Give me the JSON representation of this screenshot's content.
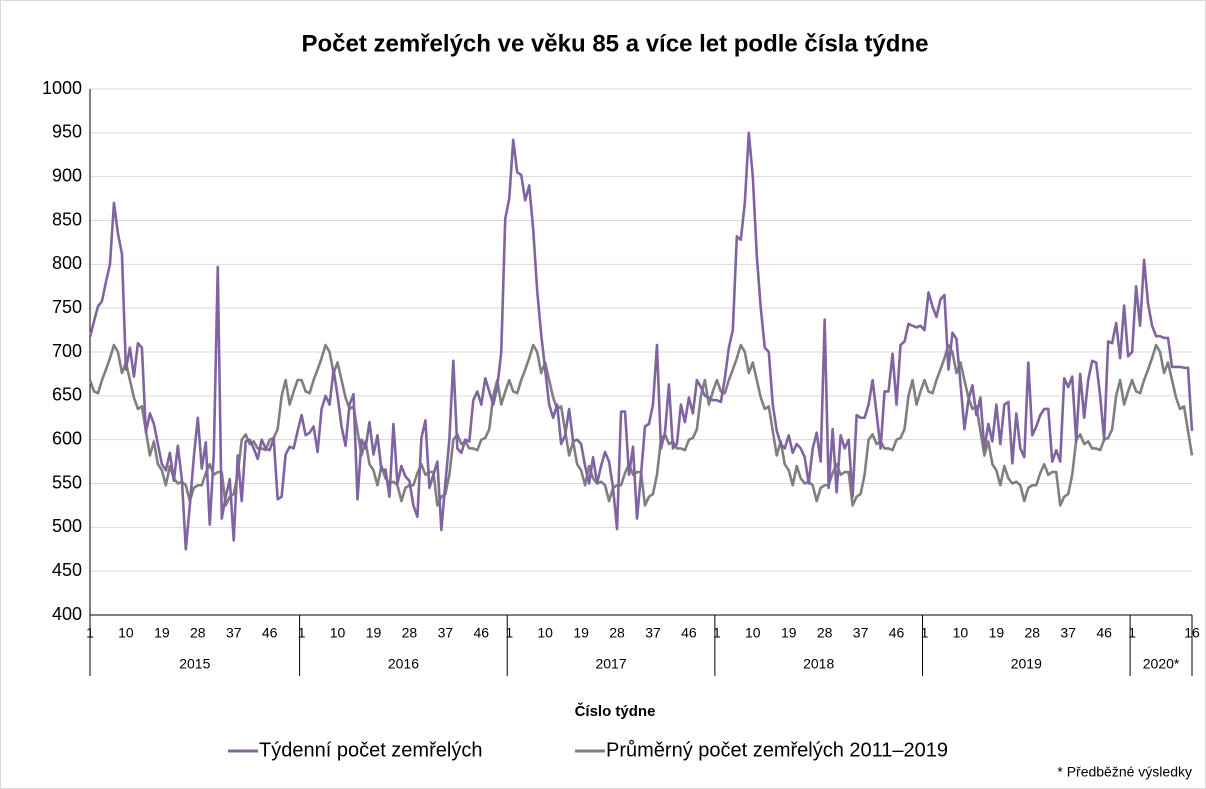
{
  "chart_data": {
    "type": "line",
    "title": "Počet zemřelých ve věku 85 a více let podle čísla týdne",
    "x_label": "Číslo týdne",
    "note": "* Předběžné výsledky",
    "years": [
      "2015",
      "2016",
      "2017",
      "2018",
      "2019",
      "2020*"
    ],
    "categories": [
      "1",
      null,
      null,
      null,
      null,
      null,
      null,
      null,
      null,
      "10",
      null,
      null,
      null,
      null,
      null,
      null,
      null,
      null,
      "19",
      null,
      null,
      null,
      null,
      null,
      null,
      null,
      null,
      "28",
      null,
      null,
      null,
      null,
      null,
      null,
      null,
      null,
      "37",
      null,
      null,
      null,
      null,
      null,
      null,
      null,
      null,
      "46",
      null,
      null,
      null,
      null,
      null,
      null,
      null,
      "1",
      null,
      null,
      null,
      null,
      null,
      null,
      null,
      null,
      "10",
      null,
      null,
      null,
      null,
      null,
      null,
      null,
      null,
      "19",
      null,
      null,
      null,
      null,
      null,
      null,
      null,
      null,
      "28",
      null,
      null,
      null,
      null,
      null,
      null,
      null,
      null,
      "37",
      null,
      null,
      null,
      null,
      null,
      null,
      null,
      null,
      "46",
      null,
      null,
      null,
      null,
      null,
      null,
      "1",
      null,
      null,
      null,
      null,
      null,
      null,
      null,
      null,
      "10",
      null,
      null,
      null,
      null,
      null,
      null,
      null,
      null,
      "19",
      null,
      null,
      null,
      null,
      null,
      null,
      null,
      null,
      "28",
      null,
      null,
      null,
      null,
      null,
      null,
      null,
      null,
      "37",
      null,
      null,
      null,
      null,
      null,
      null,
      null,
      null,
      "46",
      null,
      null,
      null,
      null,
      null,
      null,
      "1",
      null,
      null,
      null,
      null,
      null,
      null,
      null,
      null,
      "10",
      null,
      null,
      null,
      null,
      null,
      null,
      null,
      null,
      "19",
      null,
      null,
      null,
      null,
      null,
      null,
      null,
      null,
      "28",
      null,
      null,
      null,
      null,
      null,
      null,
      null,
      null,
      "37",
      null,
      null,
      null,
      null,
      null,
      null,
      null,
      null,
      "46",
      null,
      null,
      null,
      null,
      null,
      null,
      "1",
      null,
      null,
      null,
      null,
      null,
      null,
      null,
      null,
      "10",
      null,
      null,
      null,
      null,
      null,
      null,
      null,
      null,
      "19",
      null,
      null,
      null,
      null,
      null,
      null,
      null,
      null,
      "28",
      null,
      null,
      null,
      null,
      null,
      null,
      null,
      null,
      "37",
      null,
      null,
      null,
      null,
      null,
      null,
      null,
      null,
      "46",
      null,
      null,
      null,
      null,
      null,
      null,
      "1",
      null,
      null,
      null,
      null,
      null,
      null,
      null,
      null,
      null,
      null,
      null,
      null,
      null,
      null,
      "16"
    ],
    "series": [
      {
        "name": "Týdenní počet zemřelých",
        "color": "#8064a2",
        "values": [
          717,
          735,
          752,
          758,
          780,
          800,
          870,
          835,
          812,
          680,
          705,
          672,
          710,
          705,
          608,
          630,
          618,
          595,
          572,
          565,
          585,
          553,
          593,
          555,
          475,
          525,
          580,
          625,
          567,
          597,
          503,
          583,
          797,
          510,
          535,
          555,
          485,
          582,
          530,
          598,
          600,
          590,
          578,
          600,
          590,
          588,
          602,
          532,
          535,
          583,
          592,
          590,
          610,
          628,
          605,
          608,
          615,
          586,
          635,
          650,
          640,
          680,
          650,
          615,
          593,
          640,
          652,
          532,
          600,
          590,
          620,
          583,
          605,
          565,
          566,
          535,
          618,
          550,
          570,
          558,
          553,
          525,
          512,
          602,
          622,
          545,
          560,
          575,
          497,
          550,
          600,
          690,
          590,
          585,
          600,
          598,
          645,
          655,
          640,
          670,
          655,
          640,
          660,
          700,
          852,
          875,
          942,
          905,
          902,
          873,
          890,
          840,
          770,
          720,
          680,
          640,
          625,
          640,
          595,
          605,
          635,
          598,
          600,
          595,
          570,
          550,
          580,
          550,
          570,
          586,
          575,
          545,
          498,
          632,
          632,
          560,
          592,
          510,
          560,
          615,
          618,
          640,
          708,
          590,
          608,
          663,
          590,
          595,
          640,
          620,
          648,
          630,
          668,
          660,
          650,
          648,
          645,
          645,
          643,
          670,
          705,
          725,
          832,
          828,
          870,
          950,
          900,
          810,
          750,
          705,
          700,
          640,
          610,
          595,
          590,
          605,
          585,
          595,
          590,
          580,
          550,
          590,
          608,
          575,
          737,
          545,
          612,
          540,
          605,
          590,
          600,
          535,
          628,
          625,
          625,
          640,
          668,
          630,
          590,
          655,
          655,
          698,
          640,
          708,
          712,
          732,
          730,
          728,
          730,
          725,
          768,
          752,
          740,
          760,
          765,
          680,
          722,
          715,
          665,
          612,
          645,
          662,
          628,
          648,
          590,
          618,
          598,
          640,
          595,
          640,
          643,
          573,
          630,
          590,
          580,
          688,
          605,
          615,
          628,
          635,
          635,
          575,
          588,
          575,
          670,
          660,
          672,
          598,
          675,
          625,
          668,
          690,
          688,
          650,
          600,
          712,
          710,
          733,
          693,
          753,
          695,
          700,
          775,
          730,
          805,
          755,
          730,
          718,
          718,
          716,
          716,
          683,
          683,
          683,
          682,
          682,
          610
        ]
      },
      {
        "name": "Průměrný počet zemřelých 2011–2019",
        "color": "#7f7f7f",
        "values": [
          668,
          655,
          653,
          668,
          680,
          693,
          708,
          700,
          676,
          688,
          668,
          648,
          635,
          638,
          610,
          582,
          598,
          572,
          565,
          548,
          570,
          556,
          550,
          552,
          548,
          530,
          545,
          548,
          548,
          562,
          572,
          560,
          563,
          563,
          525,
          535,
          538,
          560,
          600,
          606,
          595,
          598,
          590,
          590,
          588,
          600,
          602,
          612,
          650,
          668,
          640,
          655,
          668,
          668,
          655,
          653,
          668,
          680,
          693,
          708,
          700,
          676,
          688,
          668,
          648,
          635,
          638,
          610,
          582,
          598,
          572,
          565,
          548,
          570,
          556,
          550,
          552,
          548,
          530,
          545,
          548,
          548,
          562,
          572,
          560,
          563,
          563,
          525,
          535,
          538,
          560,
          600,
          606,
          595,
          598,
          590,
          590,
          588,
          600,
          602,
          612,
          650,
          668,
          640,
          655,
          668,
          655,
          653,
          668,
          680,
          693,
          708,
          700,
          676,
          688,
          668,
          648,
          635,
          638,
          610,
          582,
          598,
          572,
          565,
          548,
          570,
          556,
          550,
          552,
          548,
          530,
          545,
          548,
          548,
          562,
          572,
          560,
          563,
          563,
          525,
          535,
          538,
          560,
          600,
          606,
          595,
          598,
          590,
          590,
          588,
          600,
          602,
          612,
          650,
          668,
          640,
          655,
          668,
          655,
          653,
          668,
          680,
          693,
          708,
          700,
          676,
          688,
          668,
          648,
          635,
          638,
          610,
          582,
          598,
          572,
          565,
          548,
          570,
          556,
          550,
          552,
          548,
          530,
          545,
          548,
          548,
          562,
          572,
          560,
          563,
          563,
          525,
          535,
          538,
          560,
          600,
          606,
          595,
          598,
          590,
          590,
          588,
          600,
          602,
          612,
          650,
          668,
          640,
          655,
          668,
          655,
          653,
          668,
          680,
          693,
          708,
          700,
          676,
          688,
          668,
          648,
          635,
          638,
          610,
          582,
          598,
          572,
          565,
          548,
          570,
          556,
          550,
          552,
          548,
          530,
          545,
          548,
          548,
          562,
          572,
          560,
          563,
          563,
          525,
          535,
          538,
          560,
          600,
          606,
          595,
          598,
          590,
          590,
          588,
          600,
          602,
          612,
          650,
          668,
          640,
          655,
          668,
          655,
          653,
          668,
          680,
          693,
          708,
          700,
          676,
          688,
          668,
          648,
          635,
          638,
          610,
          582
        ]
      }
    ],
    "ylim": [
      400,
      1000
    ],
    "yticks": [
      400,
      450,
      500,
      550,
      600,
      650,
      700,
      750,
      800,
      850,
      900,
      950,
      1000
    ],
    "grid": true,
    "legend": "bottom"
  }
}
